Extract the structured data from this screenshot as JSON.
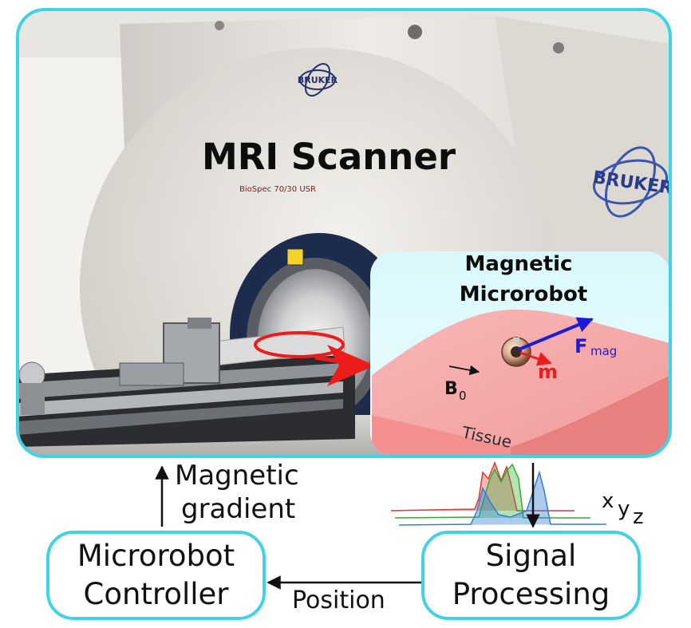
{
  "photo": {
    "title": "MRI Scanner",
    "logo_text": "BRUKER",
    "model_text": "BioSpec 70/30 USR"
  },
  "inset": {
    "title_line1": "Magnetic",
    "title_line2": "Microrobot",
    "b0_label": "B",
    "b0_sub": "0",
    "m_label": "m",
    "fmag_label": "F",
    "fmag_sub": "mag",
    "tissue_label": "Tissue"
  },
  "flow": {
    "gradient_line1": "Magnetic",
    "gradient_line2": "gradient",
    "position_label": "Position",
    "controller_line1": "Microrobot",
    "controller_line2": "Controller",
    "processing_line1": "Signal",
    "processing_line2": "Processing",
    "axis_x": "x",
    "axis_y": "y",
    "axis_z": "z"
  },
  "colors": {
    "frame": "#3fd3e6",
    "arrow_red": "#ee1b1b",
    "force_blue": "#1c1cd8",
    "tissue": "#f6a8a8",
    "signal_red": "#e23434",
    "signal_green": "#2fae2f",
    "signal_blue": "#2f7fd6"
  }
}
